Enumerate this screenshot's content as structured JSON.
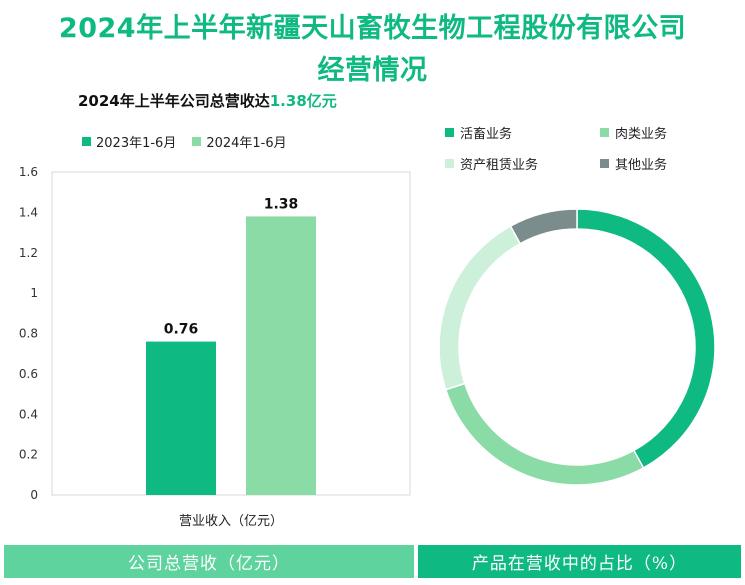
{
  "title_line1": "2024年上半年新疆天山畜牧生物工程股份有限公司",
  "title_line2": "经营情况",
  "subtitle_prefix": "2024年上半年公司总营收达",
  "subtitle_value": "1.38亿元",
  "colors": {
    "series_2023": "#0fb982",
    "series_2024": "#8adba5",
    "title": "#0fb982",
    "footer_left": "#5ed39e",
    "footer_right": "#0fb982"
  },
  "chart_data": [
    {
      "type": "bar",
      "categories": [
        "营业收入（亿元）"
      ],
      "series": [
        {
          "name": "2023年1-6月",
          "values": [
            0.76
          ],
          "color": "#0fb982"
        },
        {
          "name": "2024年1-6月",
          "values": [
            1.38
          ],
          "color": "#8adba5"
        }
      ],
      "data_labels": [
        "0.76",
        "1.38"
      ],
      "xlabel": "营业收入（亿元）",
      "ylim": [
        0,
        1.6
      ],
      "yticks": [
        "0",
        "0.2",
        "0.4",
        "0.6",
        "0.8",
        "1",
        "1.2",
        "1.4",
        "1.6"
      ],
      "grid": false,
      "legend_position": "top-left"
    },
    {
      "type": "pie",
      "style": "donut",
      "labels": [
        "活畜业务",
        "肉类业务",
        "资产租赁业务",
        "其他业务"
      ],
      "values": [
        42,
        28,
        22,
        8
      ],
      "colors": [
        "#0fb982",
        "#8adba5",
        "#cdf0da",
        "#7a8c8c"
      ],
      "legend_position": "top"
    }
  ],
  "footer": {
    "left_label": "公司总营收（亿元）",
    "right_label": "产品在营收中的占比（%）"
  }
}
